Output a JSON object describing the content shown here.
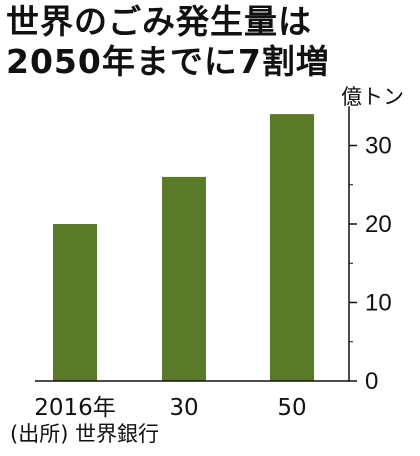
{
  "title_line1": "世界のごみ発生量は",
  "title_line2": "2050年までに7割増",
  "source": "(出所) 世界銀行",
  "colors": {
    "bar": "#5a7a2a",
    "axis": "#111111"
  },
  "chart_data": {
    "type": "bar",
    "title": "世界のごみ発生量は2050年までに7割増",
    "categories": [
      "2016年",
      "30",
      "50"
    ],
    "values": [
      20,
      26,
      34
    ],
    "ylabel": "億トン",
    "xlabel": "",
    "ylim": [
      0,
      35
    ],
    "yticks": [
      0,
      10,
      20,
      30
    ],
    "grid": false,
    "axis_side": "right"
  }
}
